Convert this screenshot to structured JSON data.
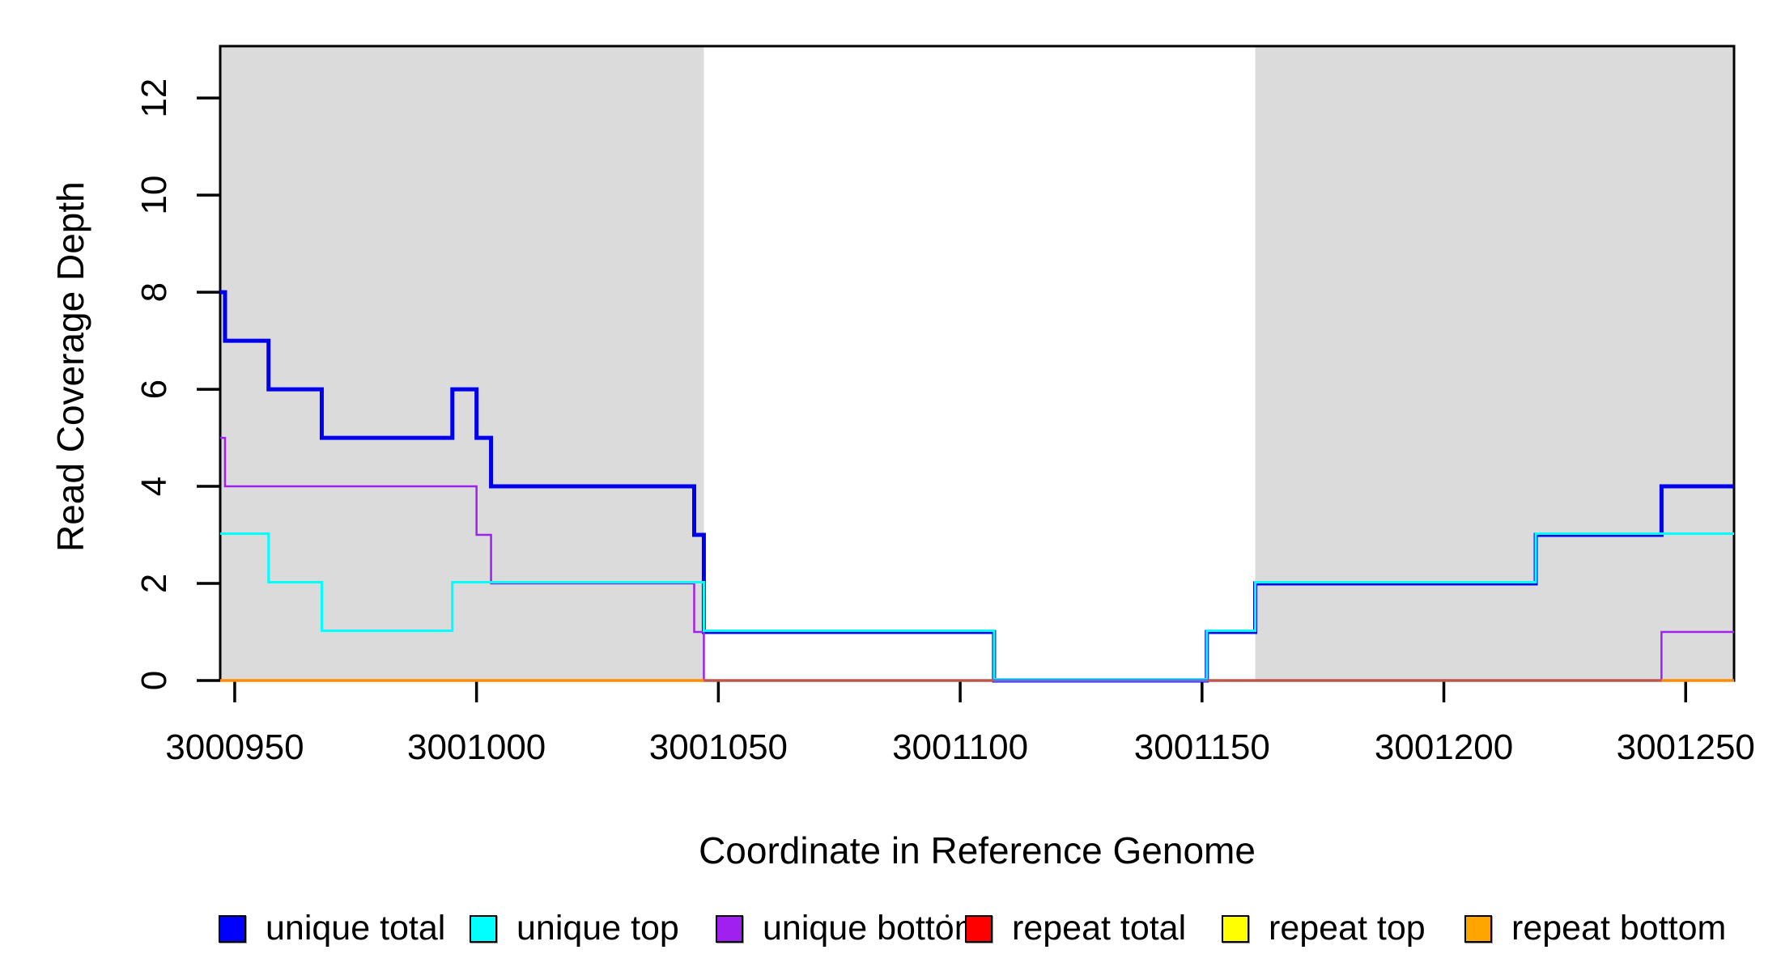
{
  "chart_data": {
    "type": "line",
    "subtype": "step-coverage",
    "title": "",
    "xlabel": "Coordinate in Reference Genome",
    "ylabel": "Read Coverage Depth",
    "xlim": [
      3000947,
      3001260
    ],
    "ylim": [
      0,
      13.07
    ],
    "x_ticks": [
      3000950,
      3001000,
      3001050,
      3001100,
      3001150,
      3001200,
      3001250
    ],
    "y_ticks": [
      0,
      2,
      4,
      6,
      8,
      10,
      12
    ],
    "grid": false,
    "legend_position": "bottom",
    "shade_color": "#DBDBDB",
    "shaded_regions": [
      [
        3000947,
        3001047
      ],
      [
        3001161,
        3001260
      ]
    ],
    "series": [
      {
        "name": "unique total",
        "color": "#0000EE",
        "width": 5,
        "dy": 0,
        "steps": [
          [
            3000947,
            8
          ],
          [
            3000948,
            7
          ],
          [
            3000957,
            6
          ],
          [
            3000968,
            5
          ],
          [
            3000995,
            6
          ],
          [
            3001000,
            5
          ],
          [
            3001003,
            4
          ],
          [
            3001045,
            3
          ],
          [
            3001047,
            1
          ],
          [
            3001107,
            0
          ],
          [
            3001151,
            1
          ],
          [
            3001161,
            2
          ],
          [
            3001219,
            3
          ],
          [
            3001245,
            4
          ]
        ],
        "end": 3001260
      },
      {
        "name": "unique bottom",
        "color": "#A020F0",
        "width": 2.5,
        "dy": 0,
        "steps": [
          [
            3000947,
            5
          ],
          [
            3000948,
            4
          ],
          [
            3001000,
            3
          ],
          [
            3001003,
            2
          ],
          [
            3001045,
            1
          ],
          [
            3001047,
            0
          ],
          [
            3001245,
            1
          ]
        ],
        "end": 3001260
      },
      {
        "name": "unique top",
        "color": "#00FFFF",
        "width": 3,
        "dy": -1.5,
        "steps": [
          [
            3000947,
            3
          ],
          [
            3000957,
            2
          ],
          [
            3000968,
            1
          ],
          [
            3000995,
            2
          ],
          [
            3001047,
            1
          ],
          [
            3001107,
            0
          ],
          [
            3001151,
            1
          ],
          [
            3001161,
            2
          ],
          [
            3001219,
            3
          ]
        ],
        "end": 3001260
      },
      {
        "name": "repeat total",
        "color": "#FF0000",
        "width": 3,
        "dy": 0,
        "flat_zero": true,
        "steps": [
          [
            3000947,
            0
          ]
        ],
        "end": 3001260
      },
      {
        "name": "repeat top",
        "color": "#FFFF00",
        "width": 3,
        "dy": 0,
        "flat_zero": true,
        "steps": [
          [
            3000947,
            0
          ]
        ],
        "end": 3001260
      },
      {
        "name": "repeat bottom",
        "color": "#FFA500",
        "width": 3,
        "dy": 0,
        "flat_zero": true,
        "steps": [
          [
            3000947,
            0
          ]
        ],
        "end": 3001260
      }
    ],
    "zero_line_segments": [
      {
        "from": 3000947,
        "to": 3001047,
        "color": "#FF8C00"
      },
      {
        "from": 3001047,
        "to": 3001107,
        "color": "#BF564E"
      },
      {
        "from": 3001107,
        "to": 3001151,
        "color": "#6B6BDE"
      },
      {
        "from": 3001151,
        "to": 3001245,
        "color": "#BF564E"
      },
      {
        "from": 3001245,
        "to": 3001260,
        "color": "#FF8C00"
      }
    ],
    "legend": [
      {
        "label": "unique total",
        "color": "#0000FF"
      },
      {
        "label": "unique top",
        "color": "#00FFFF"
      },
      {
        "label": "unique bottom",
        "color": "#A020F0"
      },
      {
        "label": "repeat total",
        "color": "#FF0000"
      },
      {
        "label": "repeat top",
        "color": "#FFFF00"
      },
      {
        "label": "repeat bottom",
        "color": "#FFA500"
      }
    ]
  }
}
